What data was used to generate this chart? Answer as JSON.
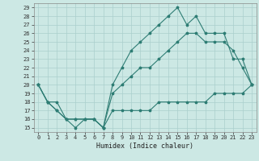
{
  "title": "",
  "xlabel": "Humidex (Indice chaleur)",
  "bg_color": "#cce8e4",
  "line_color": "#2e7d74",
  "grid_color": "#aacfcc",
  "xlim": [
    -0.5,
    23.5
  ],
  "ylim": [
    14.5,
    29.5
  ],
  "xticks": [
    0,
    1,
    2,
    3,
    4,
    5,
    6,
    7,
    8,
    9,
    10,
    11,
    12,
    13,
    14,
    15,
    16,
    17,
    18,
    19,
    20,
    21,
    22,
    23
  ],
  "yticks": [
    15,
    16,
    17,
    18,
    19,
    20,
    21,
    22,
    23,
    24,
    25,
    26,
    27,
    28,
    29
  ],
  "line1_x": [
    0,
    1,
    2,
    3,
    4,
    5,
    6,
    7,
    8,
    9,
    10,
    11,
    12,
    13,
    14,
    15,
    16,
    17,
    18,
    19,
    20,
    21,
    22,
    23
  ],
  "line1_y": [
    20,
    18,
    18,
    16,
    15,
    16,
    16,
    15,
    20,
    22,
    24,
    25,
    26,
    27,
    28,
    29,
    27,
    28,
    26,
    26,
    26,
    23,
    23,
    20
  ],
  "line2_x": [
    0,
    1,
    2,
    3,
    4,
    5,
    6,
    7,
    8,
    9,
    10,
    11,
    12,
    13,
    14,
    15,
    16,
    17,
    18,
    19,
    20,
    21,
    22,
    23
  ],
  "line2_y": [
    20,
    18,
    17,
    16,
    16,
    16,
    16,
    15,
    19,
    20,
    21,
    22,
    22,
    23,
    24,
    25,
    26,
    26,
    25,
    25,
    25,
    24,
    22,
    20
  ],
  "line3_x": [
    0,
    1,
    2,
    3,
    4,
    5,
    6,
    7,
    8,
    9,
    10,
    11,
    12,
    13,
    14,
    15,
    16,
    17,
    18,
    19,
    20,
    21,
    22,
    23
  ],
  "line3_y": [
    20,
    18,
    17,
    16,
    16,
    16,
    16,
    15,
    17,
    17,
    17,
    17,
    17,
    18,
    18,
    18,
    18,
    18,
    18,
    19,
    19,
    19,
    19,
    20
  ],
  "marker": "*",
  "marker_size": 2.5,
  "linewidth": 0.8,
  "tick_fontsize": 5.0,
  "xlabel_fontsize": 6.0
}
